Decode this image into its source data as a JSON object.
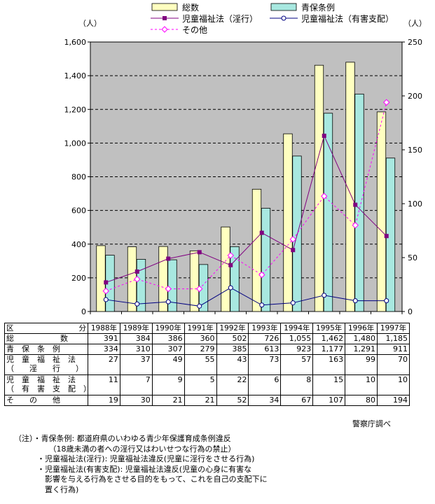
{
  "chart_data": {
    "type": "bar",
    "categories": [
      "1988年",
      "1989年",
      "1990年",
      "1991年",
      "1992年",
      "1993年",
      "1994年",
      "1995年",
      "1996年",
      "1997年"
    ],
    "series": [
      {
        "name": "総数",
        "kind": "bar",
        "axis": "left",
        "color": "#ffffc0",
        "values": [
          391,
          384,
          386,
          360,
          502,
          726,
          1055,
          1462,
          1480,
          1185
        ]
      },
      {
        "name": "青保条例",
        "kind": "bar",
        "axis": "left",
        "color": "#a8e8e0",
        "values": [
          334,
          310,
          307,
          279,
          385,
          613,
          923,
          1177,
          1291,
          911
        ]
      },
      {
        "name": "児童福祉法（淫行）",
        "kind": "line",
        "axis": "right",
        "color": "#800080",
        "marker": "square",
        "values": [
          27,
          37,
          49,
          55,
          43,
          73,
          57,
          163,
          99,
          70
        ]
      },
      {
        "name": "児童福祉法（有害支配）",
        "kind": "line",
        "axis": "right",
        "color": "#000080",
        "marker": "circle",
        "values": [
          11,
          7,
          9,
          5,
          22,
          6,
          8,
          15,
          10,
          10
        ]
      },
      {
        "name": "その他",
        "kind": "line",
        "axis": "right",
        "color": "#ff00ff",
        "marker": "diamond",
        "dashed": true,
        "values": [
          19,
          30,
          21,
          21,
          52,
          34,
          67,
          107,
          80,
          194
        ]
      }
    ],
    "y_left": {
      "unit": "（人）",
      "range": [
        0,
        1600
      ],
      "ticks": [
        "0",
        "200",
        "400",
        "600",
        "800",
        "1,000",
        "1,200",
        "1,400",
        "1,600"
      ]
    },
    "y_right": {
      "unit": "（人）",
      "range": [
        0,
        250
      ],
      "ticks": [
        "0",
        "50",
        "100",
        "150",
        "200",
        "250"
      ]
    },
    "plot_background": "#c0c0c0",
    "grid": "dashed horizontal",
    "legend_position": "top"
  },
  "table": {
    "corner_left": "区",
    "corner_right": "分",
    "years": [
      "1988年",
      "1989年",
      "1990年",
      "1991年",
      "1992年",
      "1993年",
      "1994年",
      "1995年",
      "1996年",
      "1997年"
    ],
    "rows": [
      {
        "label": "総　　　　　　数",
        "values": [
          "391",
          "384",
          "386",
          "360",
          "502",
          "726",
          "1,055",
          "1,462",
          "1,480",
          "1,185"
        ]
      },
      {
        "label": "青　保　条　例",
        "values": [
          "334",
          "310",
          "307",
          "279",
          "385",
          "613",
          "923",
          "1,177",
          "1,291",
          "911"
        ]
      },
      {
        "label": "児　童　福　祉　法\n（　　淫　　行　　）",
        "values": [
          "27",
          "37",
          "49",
          "55",
          "43",
          "73",
          "57",
          "163",
          "99",
          "70"
        ]
      },
      {
        "label": "児　童　福　祉　法\n（　有　害　支　配　）",
        "values": [
          "11",
          "7",
          "9",
          "5",
          "22",
          "6",
          "8",
          "15",
          "10",
          "10"
        ]
      },
      {
        "label": "そ　　の　　他",
        "values": [
          "19",
          "30",
          "21",
          "21",
          "52",
          "34",
          "67",
          "107",
          "80",
          "194"
        ]
      }
    ]
  },
  "source": "警察庁調べ",
  "notes": [
    "（注）・青保条例: 都道府県のいわゆる青少年保護育成条例違反",
    "　　　　　（18歳未満の者への淫行又はわいせつな行為の禁止）",
    "　　　・児童福祉法(淫行): 児童福祉法違反(児童に淫行をさせる行為)",
    "　　　・児童福祉法(有害支配): 児童福祉法違反(児童の心身に有害な",
    "　　　　影響を与える行為をさせる目的をもって、これを自己の支配下に",
    "　　　　置く行為)"
  ]
}
